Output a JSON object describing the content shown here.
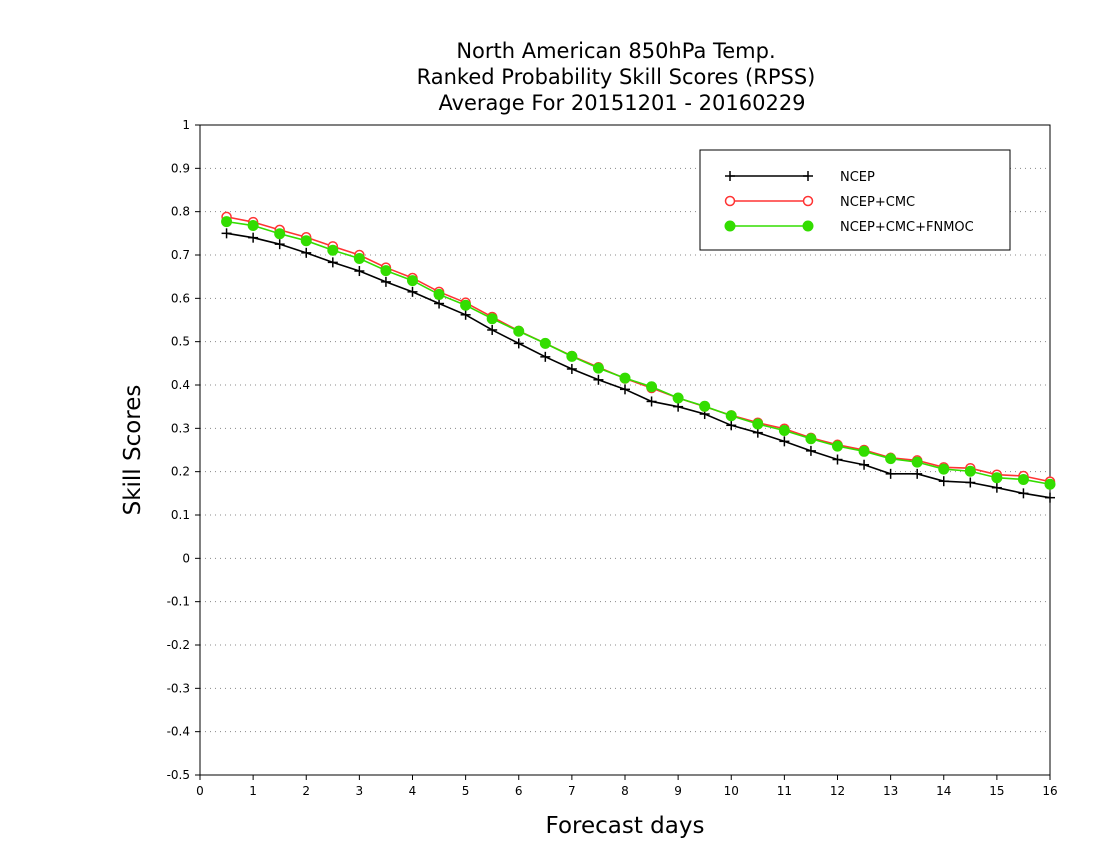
{
  "chart_data": {
    "type": "line",
    "title": [
      "North American 850hPa Temp.",
      "Ranked Probability Skill Scores (RPSS)",
      "Average For 20151201 - 20160229"
    ],
    "xlabel": "Forecast days",
    "ylabel": "Skill Scores",
    "xlim": [
      0,
      16
    ],
    "ylim": [
      -0.5,
      1
    ],
    "xticks": [
      "0",
      "1",
      "2",
      "3",
      "4",
      "5",
      "6",
      "7",
      "8",
      "9",
      "10",
      "11",
      "12",
      "13",
      "14",
      "15",
      "16"
    ],
    "yticks": [
      "1",
      "0.9",
      "0.8",
      "0.7",
      "0.6",
      "0.5",
      "0.4",
      "0.3",
      "0.2",
      "0.1",
      "0",
      "-0.1",
      "-0.2",
      "-0.3",
      "-0.4",
      "-0.5"
    ],
    "grid": "horizontal dotted",
    "legend_position": "top-right",
    "x": [
      0.5,
      1,
      1.5,
      2,
      2.5,
      3,
      3.5,
      4,
      4.5,
      5,
      5.5,
      6,
      6.5,
      7,
      7.5,
      8,
      8.5,
      9,
      9.5,
      10,
      10.5,
      11,
      11.5,
      12,
      12.5,
      13,
      13.5,
      14,
      14.5,
      15,
      15.5,
      16
    ],
    "series": [
      {
        "name": "NCEP",
        "color": "#000000",
        "marker": "plus",
        "values": [
          0.75,
          0.74,
          0.725,
          0.705,
          0.683,
          0.663,
          0.638,
          0.615,
          0.588,
          0.562,
          0.527,
          0.496,
          0.465,
          0.437,
          0.412,
          0.39,
          0.362,
          0.35,
          0.333,
          0.307,
          0.29,
          0.27,
          0.248,
          0.228,
          0.216,
          0.195,
          0.195,
          0.178,
          0.175,
          0.163,
          0.15,
          0.14
        ]
      },
      {
        "name": "NCEP+CMC",
        "color": "#ff3333",
        "marker": "open-circle",
        "values": [
          0.788,
          0.776,
          0.758,
          0.741,
          0.72,
          0.7,
          0.671,
          0.647,
          0.615,
          0.59,
          0.557,
          0.525,
          0.496,
          0.467,
          0.441,
          0.415,
          0.393,
          0.37,
          0.35,
          0.33,
          0.313,
          0.299,
          0.278,
          0.262,
          0.25,
          0.232,
          0.226,
          0.21,
          0.208,
          0.193,
          0.19,
          0.177
        ]
      },
      {
        "name": "NCEP+CMC+FNMOC",
        "color": "#33dd00",
        "marker": "filled-circle",
        "values": [
          0.777,
          0.768,
          0.749,
          0.733,
          0.711,
          0.692,
          0.664,
          0.641,
          0.609,
          0.584,
          0.553,
          0.524,
          0.496,
          0.466,
          0.439,
          0.416,
          0.396,
          0.37,
          0.351,
          0.329,
          0.31,
          0.295,
          0.276,
          0.259,
          0.247,
          0.23,
          0.222,
          0.206,
          0.201,
          0.186,
          0.182,
          0.171
        ]
      }
    ]
  }
}
